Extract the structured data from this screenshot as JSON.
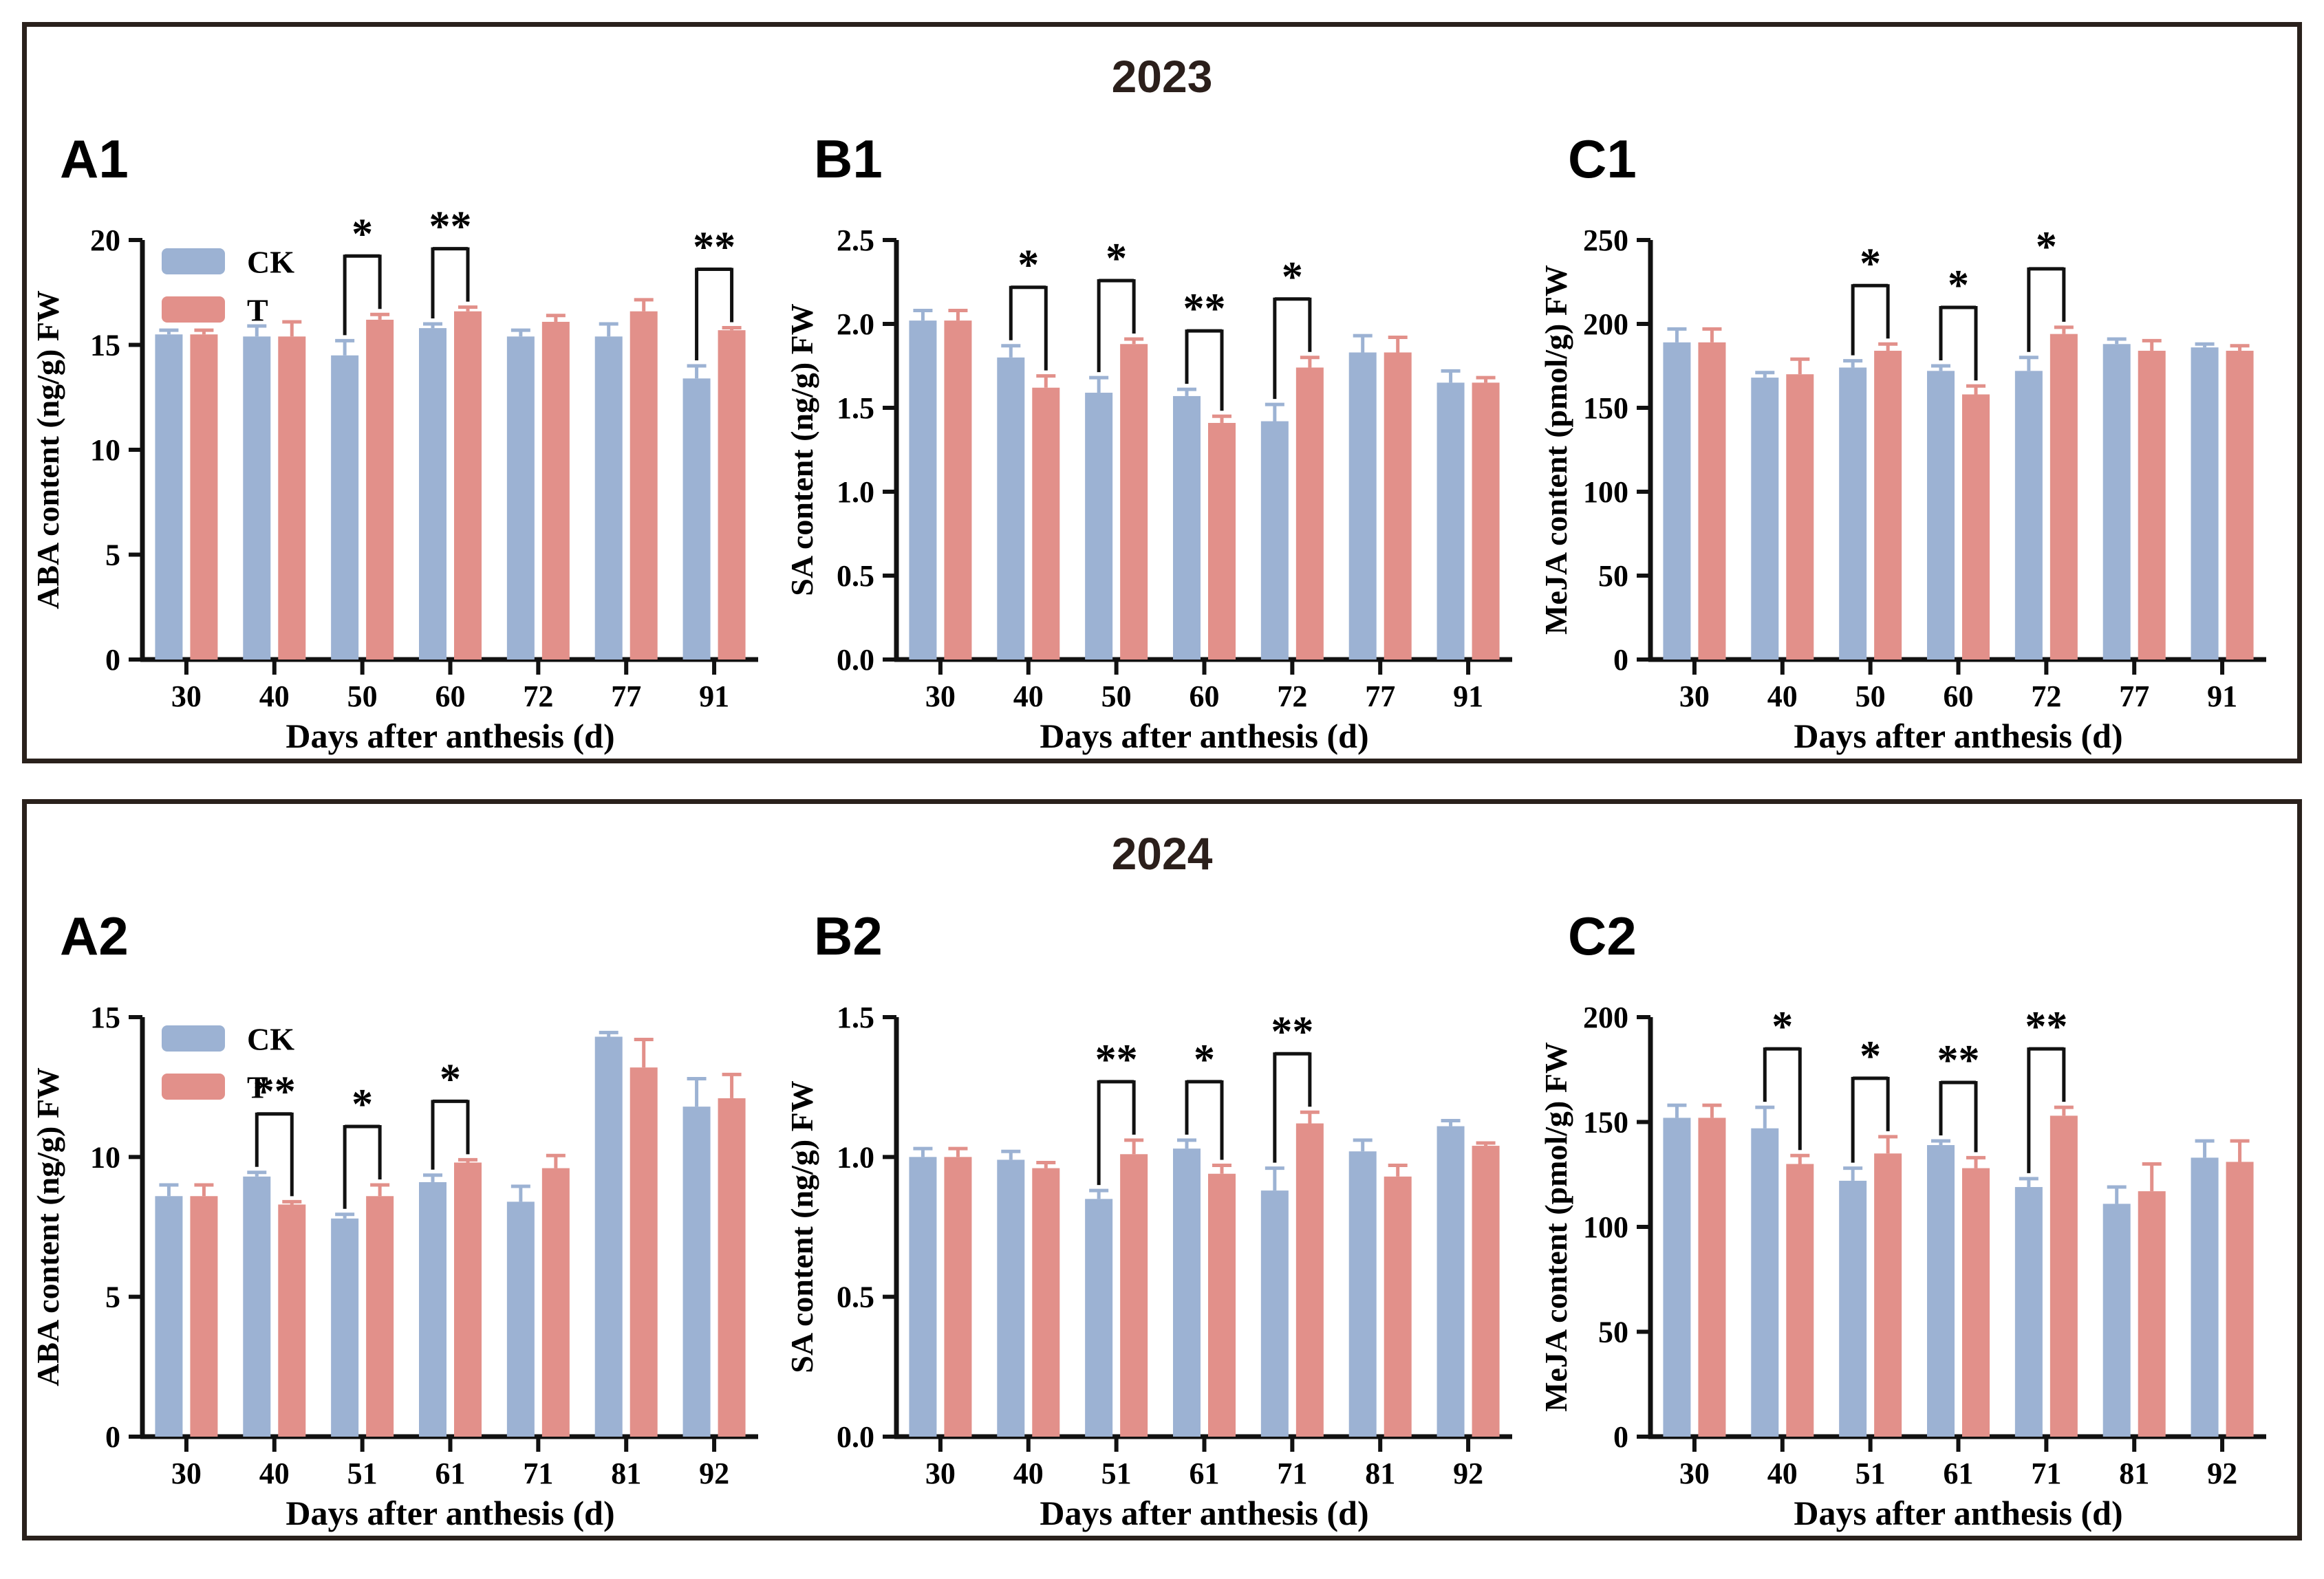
{
  "figure": {
    "boxes": [
      {
        "title": "2023"
      },
      {
        "title": "2024"
      }
    ],
    "colors": {
      "ck": "#9CB2D3",
      "t": "#E2908A",
      "border": "#2a211c",
      "axis": "#111111"
    }
  },
  "chart_data": [
    {
      "panel": "A1",
      "year": "2023",
      "type": "bar",
      "title": "",
      "xlabel": "Days after anthesis (d)",
      "ylabel": "ABA content (ng/g) FW",
      "ylim": [
        0,
        20
      ],
      "yticks": [
        "0",
        "5",
        "10",
        "15",
        "20"
      ],
      "categories": [
        "30",
        "40",
        "50",
        "60",
        "72",
        "77",
        "91"
      ],
      "legend": true,
      "legend_position": "top-left",
      "grid": false,
      "series": [
        {
          "name": "CK",
          "color": "#9CB2D3",
          "values": [
            15.5,
            15.4,
            14.5,
            15.8,
            15.4,
            15.4,
            13.4
          ],
          "errors": [
            0.2,
            0.5,
            0.7,
            0.2,
            0.3,
            0.6,
            0.6
          ]
        },
        {
          "name": "T",
          "color": "#E2908A",
          "values": [
            15.5,
            15.4,
            16.2,
            16.6,
            16.1,
            16.6,
            15.7
          ],
          "errors": [
            0.2,
            0.7,
            0.25,
            0.2,
            0.3,
            0.55,
            0.12
          ]
        }
      ],
      "significance": [
        {
          "category": "50",
          "label": "*"
        },
        {
          "category": "60",
          "label": "**"
        },
        {
          "category": "91",
          "label": "**"
        }
      ]
    },
    {
      "panel": "B1",
      "year": "2023",
      "type": "bar",
      "title": "",
      "xlabel": "Days after anthesis (d)",
      "ylabel": "SA content (ng/g) FW",
      "ylim": [
        0,
        2.5
      ],
      "yticks": [
        "0.0",
        "0.5",
        "1.0",
        "1.5",
        "2.0",
        "2.5"
      ],
      "categories": [
        "30",
        "40",
        "50",
        "60",
        "72",
        "77",
        "91"
      ],
      "legend": false,
      "grid": false,
      "series": [
        {
          "name": "CK",
          "color": "#9CB2D3",
          "values": [
            2.02,
            1.8,
            1.59,
            1.57,
            1.42,
            1.83,
            1.65
          ],
          "errors": [
            0.06,
            0.07,
            0.09,
            0.04,
            0.1,
            0.1,
            0.07
          ]
        },
        {
          "name": "T",
          "color": "#E2908A",
          "values": [
            2.02,
            1.62,
            1.88,
            1.41,
            1.74,
            1.83,
            1.65
          ],
          "errors": [
            0.06,
            0.07,
            0.03,
            0.04,
            0.06,
            0.09,
            0.03
          ]
        }
      ],
      "significance": [
        {
          "category": "40",
          "label": "*"
        },
        {
          "category": "50",
          "label": "*"
        },
        {
          "category": "60",
          "label": "**"
        },
        {
          "category": "72",
          "label": "*"
        }
      ]
    },
    {
      "panel": "C1",
      "year": "2023",
      "type": "bar",
      "title": "",
      "xlabel": "Days after anthesis (d)",
      "ylabel": "MeJA content (pmol/g) FW",
      "ylim": [
        0,
        250
      ],
      "yticks": [
        "0",
        "50",
        "100",
        "150",
        "200",
        "250"
      ],
      "categories": [
        "30",
        "40",
        "50",
        "60",
        "72",
        "77",
        "91"
      ],
      "legend": false,
      "grid": false,
      "series": [
        {
          "name": "CK",
          "color": "#9CB2D3",
          "values": [
            189,
            168,
            174,
            172,
            172,
            188,
            186
          ],
          "errors": [
            8,
            3,
            4,
            3,
            8,
            3,
            2
          ]
        },
        {
          "name": "T",
          "color": "#E2908A",
          "values": [
            189,
            170,
            184,
            158,
            194,
            184,
            184
          ],
          "errors": [
            8,
            9,
            4,
            5,
            4,
            6,
            3
          ]
        }
      ],
      "significance": [
        {
          "category": "50",
          "label": "*"
        },
        {
          "category": "60",
          "label": "*"
        },
        {
          "category": "72",
          "label": "*"
        }
      ]
    },
    {
      "panel": "A2",
      "year": "2024",
      "type": "bar",
      "title": "",
      "xlabel": "Days after anthesis (d)",
      "ylabel": "ABA content (ng/g) FW",
      "ylim": [
        0,
        15
      ],
      "yticks": [
        "0",
        "5",
        "10",
        "15"
      ],
      "categories": [
        "30",
        "40",
        "51",
        "61",
        "71",
        "81",
        "92"
      ],
      "legend": true,
      "legend_position": "top-left",
      "grid": false,
      "series": [
        {
          "name": "CK",
          "color": "#9CB2D3",
          "values": [
            8.6,
            9.3,
            7.8,
            9.1,
            8.4,
            14.3,
            11.8
          ],
          "errors": [
            0.4,
            0.15,
            0.15,
            0.25,
            0.55,
            0.15,
            1.0
          ]
        },
        {
          "name": "T",
          "color": "#E2908A",
          "values": [
            8.6,
            8.3,
            8.6,
            9.8,
            9.6,
            13.2,
            12.1
          ],
          "errors": [
            0.4,
            0.1,
            0.4,
            0.1,
            0.45,
            1.0,
            0.85
          ]
        }
      ],
      "significance": [
        {
          "category": "40",
          "label": "**"
        },
        {
          "category": "51",
          "label": "*"
        },
        {
          "category": "61",
          "label": "*"
        }
      ]
    },
    {
      "panel": "B2",
      "year": "2024",
      "type": "bar",
      "title": "",
      "xlabel": "Days after anthesis (d)",
      "ylabel": "SA content (ng/g) FW",
      "ylim": [
        0,
        1.5
      ],
      "yticks": [
        "0.0",
        "0.5",
        "1.0",
        "1.5"
      ],
      "categories": [
        "30",
        "40",
        "51",
        "61",
        "71",
        "81",
        "92"
      ],
      "legend": false,
      "grid": false,
      "series": [
        {
          "name": "CK",
          "color": "#9CB2D3",
          "values": [
            1.0,
            0.99,
            0.85,
            1.03,
            0.88,
            1.02,
            1.11
          ],
          "errors": [
            0.03,
            0.03,
            0.03,
            0.03,
            0.08,
            0.04,
            0.02
          ]
        },
        {
          "name": "T",
          "color": "#E2908A",
          "values": [
            1.0,
            0.96,
            1.01,
            0.94,
            1.12,
            0.93,
            1.04
          ],
          "errors": [
            0.03,
            0.02,
            0.05,
            0.03,
            0.04,
            0.04,
            0.01
          ]
        }
      ],
      "significance": [
        {
          "category": "51",
          "label": "**"
        },
        {
          "category": "61",
          "label": "*"
        },
        {
          "category": "71",
          "label": "**"
        }
      ]
    },
    {
      "panel": "C2",
      "year": "2024",
      "type": "bar",
      "title": "",
      "xlabel": "Days after anthesis (d)",
      "ylabel": "MeJA content (pmol/g) FW",
      "ylim": [
        0,
        200
      ],
      "yticks": [
        "0",
        "50",
        "100",
        "150",
        "200"
      ],
      "categories": [
        "30",
        "40",
        "51",
        "61",
        "71",
        "81",
        "92"
      ],
      "legend": false,
      "grid": false,
      "series": [
        {
          "name": "CK",
          "color": "#9CB2D3",
          "values": [
            152,
            147,
            122,
            139,
            119,
            111,
            133
          ],
          "errors": [
            6,
            10,
            6,
            2,
            4,
            8,
            8
          ]
        },
        {
          "name": "T",
          "color": "#E2908A",
          "values": [
            152,
            130,
            135,
            128,
            153,
            117,
            131
          ],
          "errors": [
            6,
            4,
            8,
            5,
            4,
            13,
            10
          ]
        }
      ],
      "significance": [
        {
          "category": "40",
          "label": "*"
        },
        {
          "category": "51",
          "label": "*"
        },
        {
          "category": "61",
          "label": "**"
        },
        {
          "category": "71",
          "label": "**"
        }
      ]
    }
  ]
}
